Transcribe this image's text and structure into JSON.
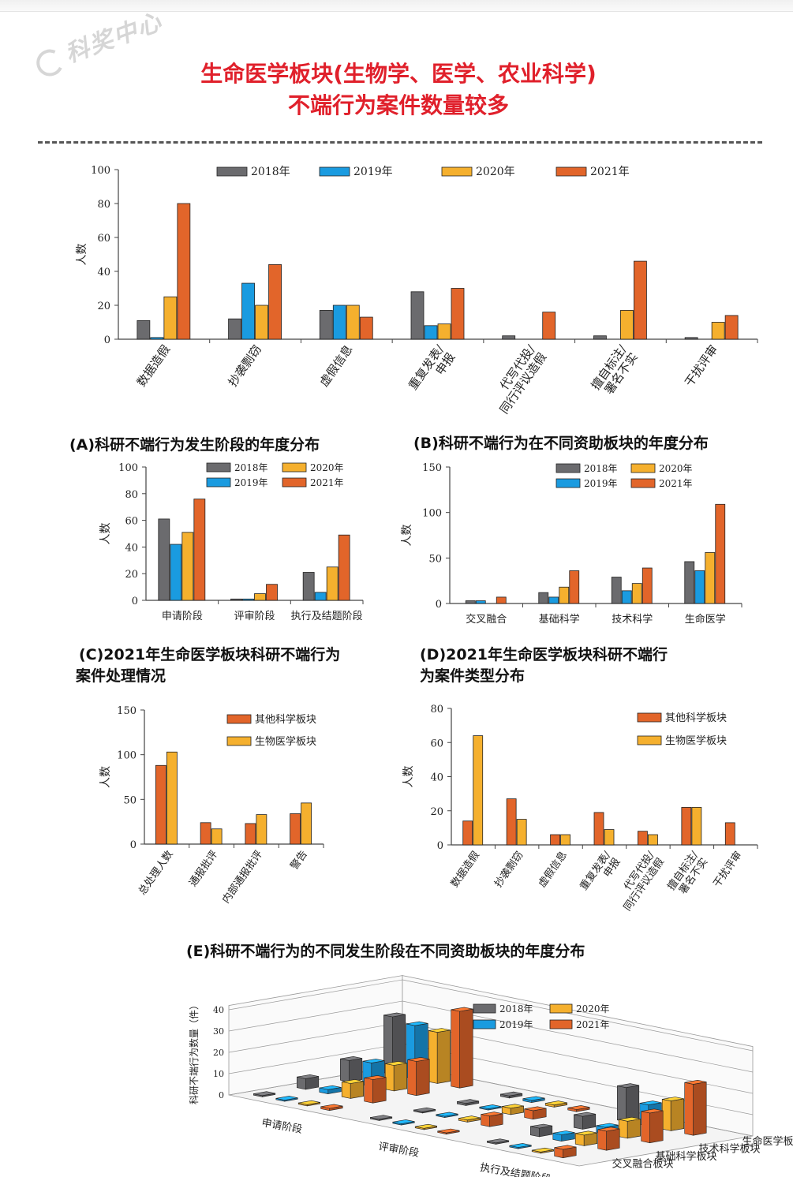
{
  "header": {
    "watermark": "科奖中心",
    "title_line1": "生命医学板块(生物学、医学、农业科学)",
    "title_line2": "不端行为案件数量较多"
  },
  "colors": {
    "2018年": "#6b6b6e",
    "2019年": "#1a9be0",
    "2020年": "#f5b02e",
    "2021年": "#e2652a",
    "其他科学板块": "#e2652a",
    "生物医学板块": "#f5b02e"
  },
  "captions": {
    "A": "(A)科研不端行为发生阶段的年度分布",
    "B": "(B)科研不端行为在不同资助板块的年度分布",
    "C_line1": "(C)2021年生命医学板块科研不端行为",
    "C_line2": "案件处理情况",
    "D_line1": "(D)2021年生命医学板块科研不端行",
    "D_line2": "为案件类型分布",
    "E": "(E)科研不端行为的不同发生阶段在不同资助板块的年度分布"
  },
  "chart_data": [
    {
      "id": "top",
      "type": "bar",
      "ylabel": "人数",
      "ylim": [
        0,
        100
      ],
      "yticks": [
        0,
        20,
        40,
        60,
        80,
        100
      ],
      "legend_placement": "top",
      "categories": [
        "数据造假",
        "抄袭剽窃",
        "虚假信息",
        "重复发表/\n申报",
        "代写代投/\n同行评议造假",
        "擅自标注/\n署名不实",
        "干扰评审"
      ],
      "series": [
        {
          "name": "2018年",
          "values": [
            11,
            12,
            17,
            28,
            2,
            2,
            1
          ]
        },
        {
          "name": "2019年",
          "values": [
            1,
            33,
            20,
            8,
            0,
            0,
            0
          ]
        },
        {
          "name": "2020年",
          "values": [
            25,
            20,
            20,
            9,
            0,
            17,
            10
          ]
        },
        {
          "name": "2021年",
          "values": [
            80,
            44,
            13,
            30,
            16,
            46,
            14
          ]
        }
      ]
    },
    {
      "id": "A",
      "type": "bar",
      "ylabel": "人数",
      "ylim": [
        0,
        100
      ],
      "yticks": [
        0,
        20,
        40,
        60,
        80,
        100
      ],
      "legend_placement": "top-right",
      "categories": [
        "申请阶段",
        "评审阶段",
        "执行及结题阶段"
      ],
      "series": [
        {
          "name": "2018年",
          "values": [
            61,
            1,
            21
          ]
        },
        {
          "name": "2019年",
          "values": [
            42,
            1,
            6
          ]
        },
        {
          "name": "2020年",
          "values": [
            51,
            5,
            25
          ]
        },
        {
          "name": "2021年",
          "values": [
            76,
            12,
            49
          ]
        }
      ]
    },
    {
      "id": "B",
      "type": "bar",
      "ylabel": "人数",
      "ylim": [
        0,
        150
      ],
      "yticks": [
        0,
        50,
        100,
        150
      ],
      "legend_placement": "top-right",
      "categories": [
        "交叉融合",
        "基础科学",
        "技术科学",
        "生命医学"
      ],
      "series": [
        {
          "name": "2018年",
          "values": [
            3,
            12,
            29,
            46
          ]
        },
        {
          "name": "2019年",
          "values": [
            3,
            7,
            14,
            36
          ]
        },
        {
          "name": "2020年",
          "values": [
            0,
            18,
            22,
            56
          ]
        },
        {
          "name": "2021年",
          "values": [
            7,
            36,
            39,
            109
          ]
        }
      ]
    },
    {
      "id": "C",
      "type": "bar",
      "ylabel": "人数",
      "ylim": [
        0,
        150
      ],
      "yticks": [
        0,
        50,
        100,
        150
      ],
      "legend_placement": "top-right",
      "categories": [
        "总处理人数",
        "通报批评",
        "内部通报批评",
        "警告"
      ],
      "series": [
        {
          "name": "其他科学板块",
          "values": [
            88,
            24,
            23,
            34
          ]
        },
        {
          "name": "生物医学板块",
          "values": [
            103,
            17,
            33,
            46
          ]
        }
      ]
    },
    {
      "id": "D",
      "type": "bar",
      "ylabel": "人数",
      "ylim": [
        0,
        80
      ],
      "yticks": [
        0,
        20,
        40,
        60,
        80
      ],
      "legend_placement": "top-right",
      "categories": [
        "数据造假",
        "抄袭剽窃",
        "虚假信息",
        "重复发表/\n申报",
        "代写代投/\n同行评议造假",
        "擅自标注/\n署名不实",
        "干扰评审"
      ],
      "series": [
        {
          "name": "其他科学板块",
          "values": [
            14,
            27,
            6,
            19,
            8,
            22,
            13
          ]
        },
        {
          "name": "生物医学板块",
          "values": [
            64,
            15,
            6,
            9,
            6,
            22,
            0
          ]
        }
      ]
    },
    {
      "id": "E",
      "type": "bar3d",
      "zlabel": "科研不端行为数量（件）",
      "zlim": [
        0,
        40
      ],
      "zticks": [
        0,
        10,
        20,
        30,
        40
      ],
      "legend_placement": "top-right",
      "stages": [
        "申请阶段",
        "评审阶段",
        "执行及结题阶段"
      ],
      "sectors": [
        "交叉融合板块",
        "基础科学板块",
        "技术科学板块",
        "生命医学板块"
      ],
      "years": [
        "2018年",
        "2019年",
        "2020年",
        "2021年"
      ],
      "values": [
        [
          [
            0,
            0,
            0,
            1
          ],
          [
            5,
            2,
            7,
            11
          ],
          [
            10,
            11,
            12,
            16
          ],
          [
            27,
            25,
            24,
            36
          ]
        ],
        [
          [
            0,
            0,
            0,
            0
          ],
          [
            0,
            0,
            1,
            5
          ],
          [
            1,
            0,
            3,
            4
          ],
          [
            1,
            1,
            1,
            1
          ]
        ],
        [
          [
            0,
            0,
            0,
            4
          ],
          [
            4,
            3,
            5,
            9
          ],
          [
            6,
            3,
            8,
            14
          ],
          [
            16,
            10,
            14,
            24
          ]
        ]
      ]
    }
  ]
}
